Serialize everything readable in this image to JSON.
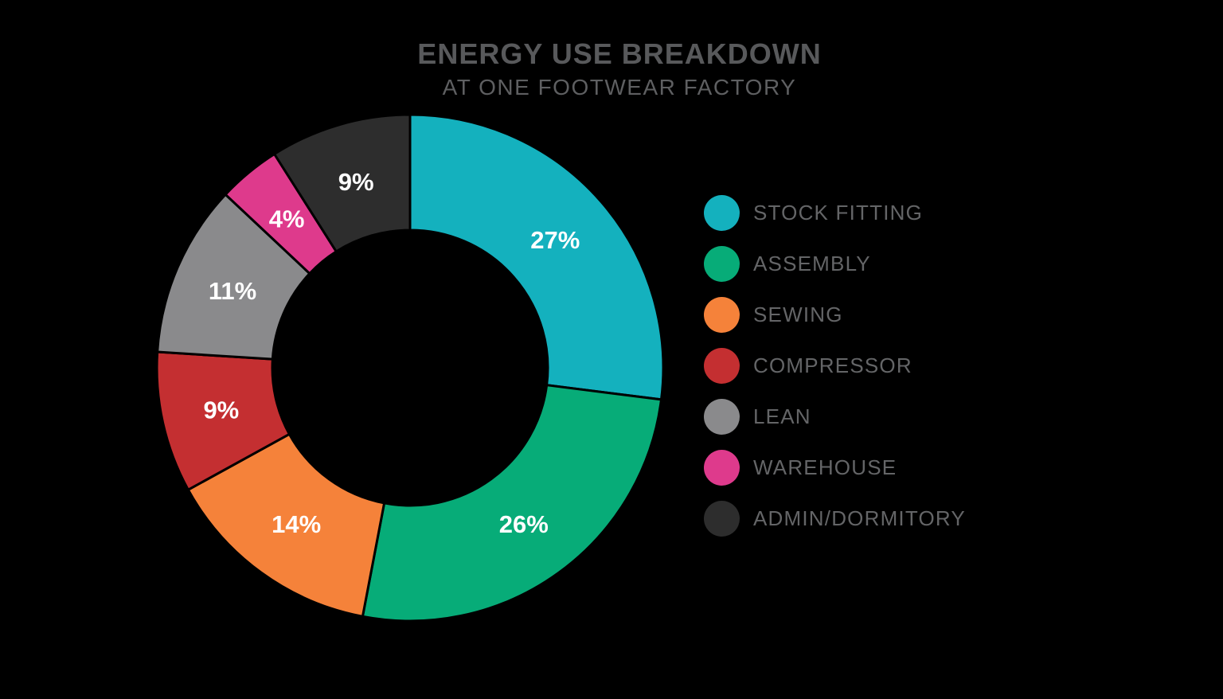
{
  "title": "ENERGY USE BREAKDOWN",
  "subtitle": "AT ONE FOOTWEAR FACTORY",
  "colors": {
    "background": "#000000",
    "title_text": "#58595B",
    "subtitle_text": "#5E5F61",
    "legend_text": "#646567",
    "percent_label_text": "#FFFFFF",
    "segment_divider": "#000000"
  },
  "chart_data": {
    "type": "pie",
    "variant": "donut",
    "title": "ENERGY USE BREAKDOWN",
    "subtitle": "AT ONE FOOTWEAR FACTORY",
    "start_angle_deg": 0,
    "direction": "clockwise",
    "legend_position": "right",
    "hole": "black",
    "segments": [
      {
        "label": "STOCK FITTING",
        "value": 27,
        "display": "27%",
        "color": "#14B1BE"
      },
      {
        "label": "ASSEMBLY",
        "value": 26,
        "display": "26%",
        "color": "#07AC78"
      },
      {
        "label": "SEWING",
        "value": 14,
        "display": "14%",
        "color": "#F5823A"
      },
      {
        "label": "COMPRESSOR",
        "value": 9,
        "display": "9%",
        "color": "#C42F31"
      },
      {
        "label": "LEAN",
        "value": 11,
        "display": "11%",
        "color": "#8A8A8C"
      },
      {
        "label": "WAREHOUSE",
        "value": 4,
        "display": "4%",
        "color": "#DE3A8C"
      },
      {
        "label": "ADMIN/DORMITORY",
        "value": 9,
        "display": "9%",
        "color": "#2D2D2D"
      }
    ]
  }
}
